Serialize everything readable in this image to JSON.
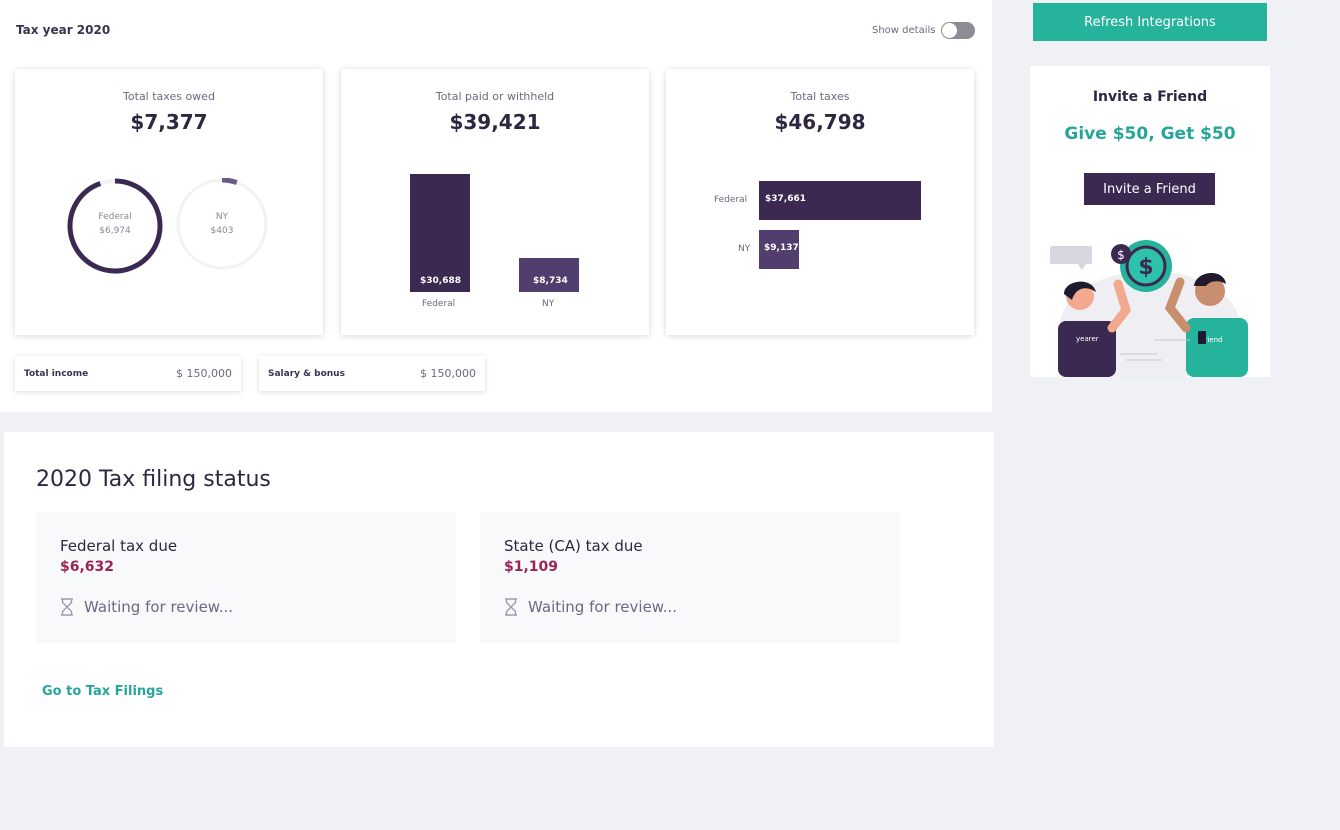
{
  "header": {
    "tax_year": "Tax year 2020",
    "show_details_label": "Show details",
    "show_details_on": false
  },
  "cards": {
    "owed": {
      "title": "Total taxes owed",
      "value": "$7,377",
      "federal_label": "Federal",
      "federal_value": "$6,974",
      "ny_label": "NY",
      "ny_value": "$403"
    },
    "paid": {
      "title": "Total paid or withheld",
      "value": "$39,421",
      "federal_value": "$30,688",
      "federal_label": "Federal",
      "ny_value": "$8,734",
      "ny_label": "NY"
    },
    "total": {
      "title": "Total taxes",
      "value": "$46,798",
      "federal_label": "Federal",
      "federal_value": "$37,661",
      "ny_label": "NY",
      "ny_value": "$9,137"
    }
  },
  "chart_data": [
    {
      "type": "pie",
      "categories": [
        "Federal",
        "NY"
      ],
      "values": [
        6974,
        403
      ],
      "title": "Total taxes owed"
    },
    {
      "type": "bar",
      "categories": [
        "Federal",
        "NY"
      ],
      "values": [
        30688,
        8734
      ],
      "title": "Total paid or withheld"
    },
    {
      "type": "bar",
      "orientation": "horizontal",
      "categories": [
        "Federal",
        "NY"
      ],
      "values": [
        37661,
        9137
      ],
      "title": "Total taxes"
    }
  ],
  "income": {
    "total_label": "Total income",
    "total_value": "$ 150,000",
    "salary_label": "Salary & bonus",
    "salary_value": "$ 150,000"
  },
  "filing": {
    "title": "2020 Tax filing status",
    "federal_label": "Federal tax due",
    "federal_value": "$6,632",
    "federal_status": "Waiting for review...",
    "state_label": "State (CA) tax due",
    "state_value": "$1,109",
    "state_status": "Waiting for review...",
    "link": "Go to Tax Filings"
  },
  "sidebar": {
    "refresh_label": "Refresh Integrations",
    "invite_title": "Invite a Friend",
    "invite_promo": "Give $50, Get $50",
    "invite_button": "Invite a Friend",
    "illus_left_text": "yearer",
    "illus_right_text": "friend"
  },
  "colors": {
    "primary_dark": "#3b2952",
    "accent_teal": "#26b39c",
    "due_red": "#9b2455"
  }
}
